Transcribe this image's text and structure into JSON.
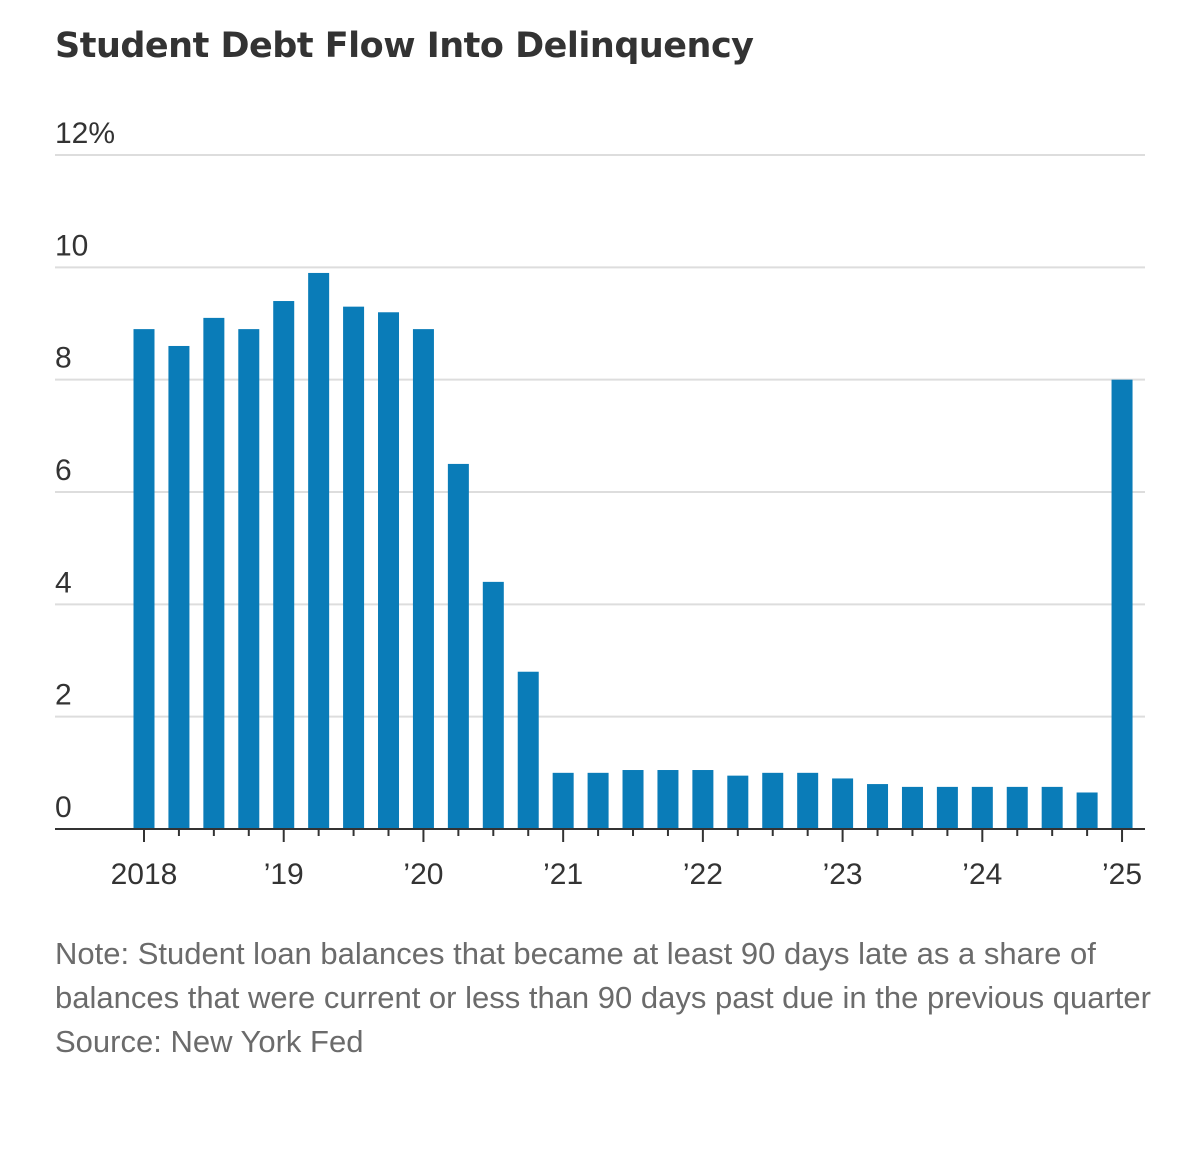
{
  "chart_data": {
    "type": "bar",
    "title": "Student Debt Flow Into Delinquency",
    "ylabel": "",
    "xlabel": "",
    "ylim": [
      0,
      12
    ],
    "yticks": [
      {
        "value": 0,
        "label": "0"
      },
      {
        "value": 2,
        "label": "2"
      },
      {
        "value": 4,
        "label": "4"
      },
      {
        "value": 6,
        "label": "6"
      },
      {
        "value": 8,
        "label": "8"
      },
      {
        "value": 10,
        "label": "10"
      },
      {
        "value": 12,
        "label": "12%"
      }
    ],
    "xticks": [
      {
        "label": "2018",
        "index": 0
      },
      {
        "label": "’19",
        "index": 4
      },
      {
        "label": "’20",
        "index": 8
      },
      {
        "label": "’21",
        "index": 12
      },
      {
        "label": "’22",
        "index": 16
      },
      {
        "label": "’23",
        "index": 20
      },
      {
        "label": "’24",
        "index": 24
      },
      {
        "label": "’25",
        "index": 28
      }
    ],
    "categories": [
      "2018 Q1",
      "2018 Q2",
      "2018 Q3",
      "2018 Q4",
      "2019 Q1",
      "2019 Q2",
      "2019 Q3",
      "2019 Q4",
      "2020 Q1",
      "2020 Q2",
      "2020 Q3",
      "2020 Q4",
      "2021 Q1",
      "2021 Q2",
      "2021 Q3",
      "2021 Q4",
      "2022 Q1",
      "2022 Q2",
      "2022 Q3",
      "2022 Q4",
      "2023 Q1",
      "2023 Q2",
      "2023 Q3",
      "2023 Q4",
      "2024 Q1",
      "2024 Q2",
      "2024 Q3",
      "2024 Q4",
      "2025 Q1"
    ],
    "values": [
      8.9,
      8.6,
      9.1,
      8.9,
      9.4,
      9.9,
      9.3,
      9.2,
      8.9,
      6.5,
      4.4,
      2.8,
      1.0,
      1.0,
      1.05,
      1.05,
      1.05,
      0.95,
      1.0,
      1.0,
      0.9,
      0.8,
      0.75,
      0.75,
      0.75,
      0.75,
      0.75,
      0.65,
      8.0
    ],
    "bar_color": "#0a7cb8",
    "grid_color": "#dddddd",
    "axis_color": "#333333"
  },
  "notes": {
    "note": "Note: Student loan balances that became at least 90 days late as a share of balances that were current or less than 90 days past due in the previous quarter",
    "source": "Source: New York Fed"
  }
}
